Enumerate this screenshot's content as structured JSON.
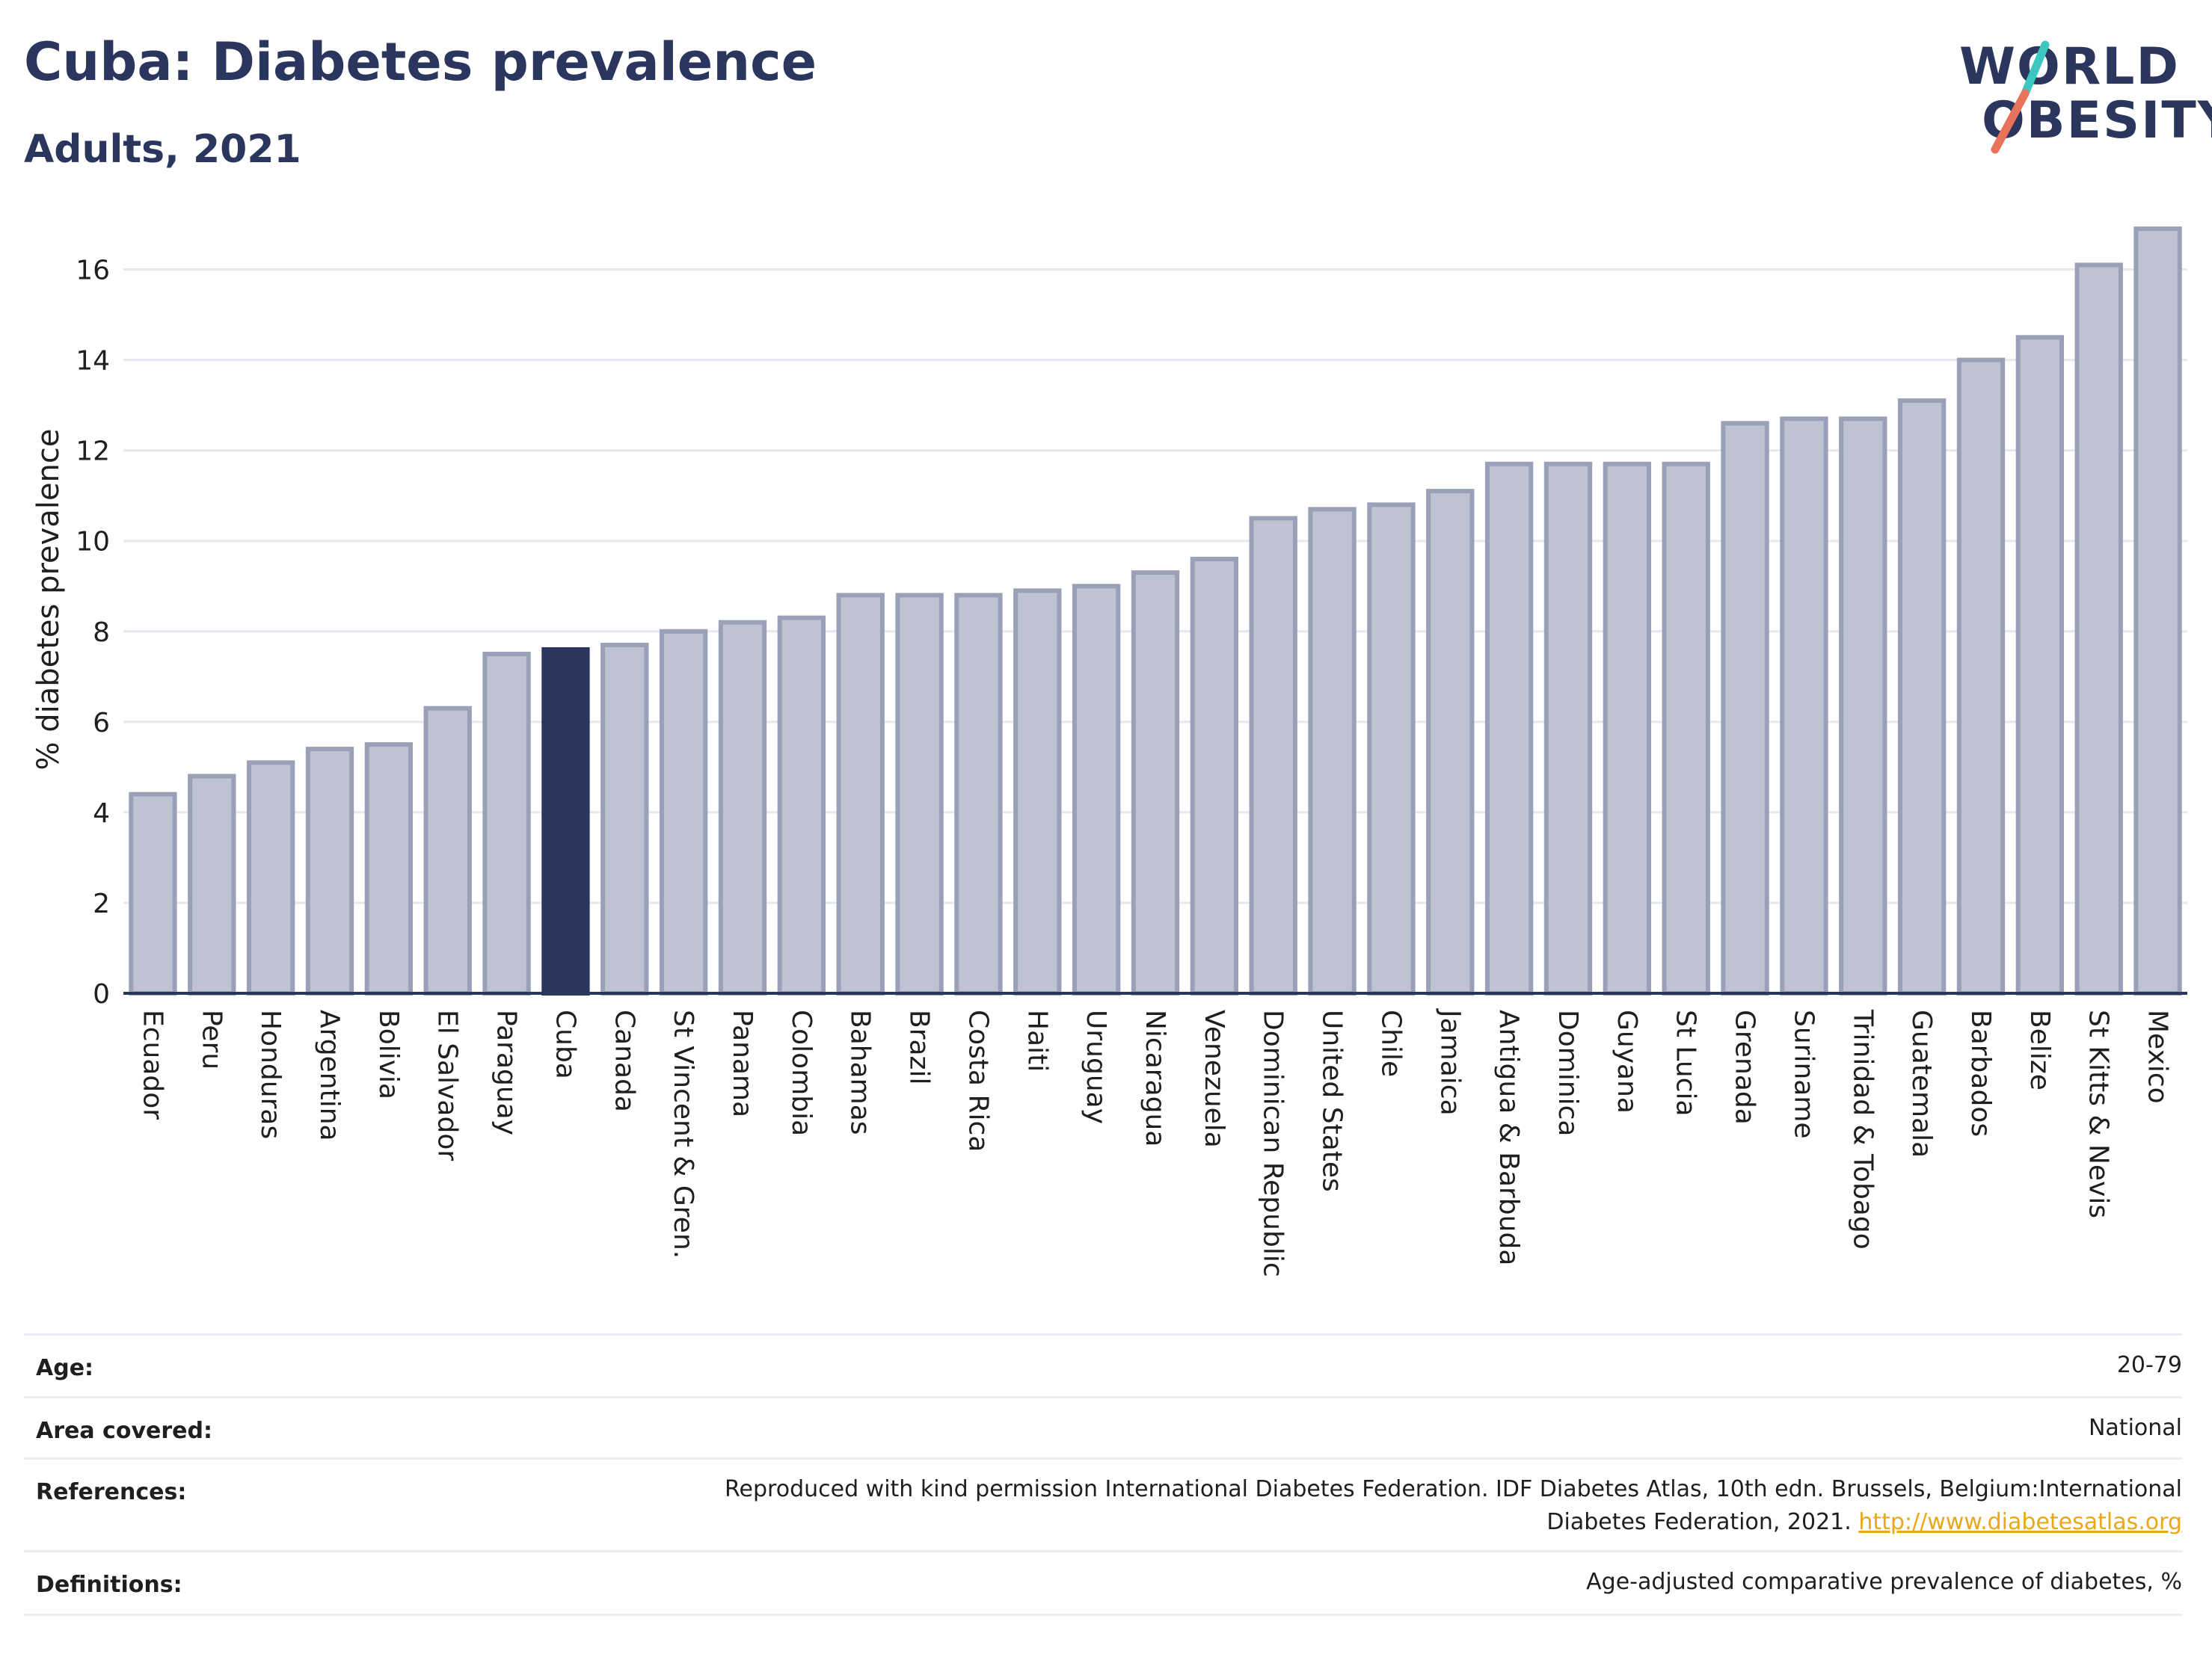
{
  "header": {
    "title": "Cuba: Diabetes prevalence",
    "subtitle": "Adults, 2021"
  },
  "logo": {
    "line1": "WORLD",
    "line2": "OBESITY",
    "accent_colors": [
      "#3cc7c0",
      "#e8735a"
    ]
  },
  "colors": {
    "bar": "#bfc3d1",
    "bar_border": "#9aa0b8",
    "highlight": "#2b365e",
    "text": "#2b365e"
  },
  "chart_data": {
    "type": "bar",
    "ylabel": "% diabetes prevalence",
    "xlabel": "",
    "ylim": [
      0,
      17
    ],
    "yticks": [
      0,
      2,
      4,
      6,
      8,
      10,
      12,
      14,
      16
    ],
    "grid": true,
    "highlight": "Cuba",
    "categories": [
      "Ecuador",
      "Peru",
      "Honduras",
      "Argentina",
      "Bolivia",
      "El Salvador",
      "Paraguay",
      "Cuba",
      "Canada",
      "St Vincent & Gren.",
      "Panama",
      "Colombia",
      "Bahamas",
      "Brazil",
      "Costa Rica",
      "Haiti",
      "Uruguay",
      "Nicaragua",
      "Venezuela",
      "Dominican Republic",
      "United States",
      "Chile",
      "Jamaica",
      "Antigua & Barbuda",
      "Dominica",
      "Guyana",
      "St Lucia",
      "Grenada",
      "Suriname",
      "Trinidad & Tobago",
      "Guatemala",
      "Barbados",
      "Belize",
      "St Kitts & Nevis",
      "Mexico"
    ],
    "values": [
      4.4,
      4.8,
      5.1,
      5.4,
      5.5,
      6.3,
      7.5,
      7.6,
      7.7,
      8.0,
      8.2,
      8.3,
      8.8,
      8.8,
      8.8,
      8.9,
      9.0,
      9.3,
      9.6,
      10.5,
      10.7,
      10.8,
      11.1,
      11.7,
      11.7,
      11.7,
      11.7,
      12.6,
      12.7,
      12.7,
      13.1,
      14.0,
      14.5,
      16.1,
      16.9
    ]
  },
  "info": {
    "rows": [
      {
        "label": "Age:",
        "value": "20-79"
      },
      {
        "label": "Area covered:",
        "value": "National"
      },
      {
        "label": "References:",
        "value": "Reproduced with kind permission International Diabetes Federation.  IDF Diabetes Atlas, 10th edn. Brussels, Belgium:International",
        "value2": "Diabetes Federation, 2021. ",
        "link": "http://www.diabetesatlas.org"
      },
      {
        "label": "Definitions:",
        "value": "Age-adjusted comparative prevalence of diabetes, %"
      }
    ]
  }
}
